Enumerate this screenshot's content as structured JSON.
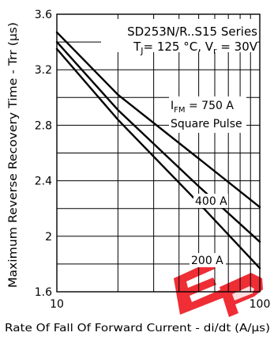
{
  "chart_data": {
    "type": "line",
    "title": "SD253N/R..S15 Series",
    "subtitle": {
      "tj_prefix": "T",
      "tj_sub": "J",
      "tj_value": "= 125 °C, V",
      "vr_sub": "r",
      "vr_value": " = 30V"
    },
    "xlabel": "Rate Of Fall Of Forward Current - di/dt (A/µs)",
    "ylabel": "Maximum Reverse Recovery Time - Trr (µs)",
    "x_scale": "log",
    "xlim": [
      10,
      100
    ],
    "ylim": [
      1.6,
      3.6
    ],
    "x_ticks": [
      "10",
      "100"
    ],
    "y_ticks": [
      "1.6",
      "2",
      "2.4",
      "2.8",
      "3.2",
      "3.6"
    ],
    "grid": true,
    "annotations": {
      "ifm_prefix": "I",
      "ifm_sub": "FM",
      "ifm_value": " = 750 A",
      "pulse": "Square Pulse",
      "label_400": "400 A",
      "label_200": "200 A"
    },
    "series": [
      {
        "x": [
          10,
          20,
          50,
          100
        ],
        "y": [
          3.47,
          3.02,
          2.56,
          2.21
        ]
      },
      {
        "x": [
          10,
          20,
          50,
          100
        ],
        "y": [
          3.4,
          2.91,
          2.36,
          1.96
        ]
      },
      {
        "x": [
          10,
          20,
          50,
          100
        ],
        "y": [
          3.35,
          2.84,
          2.24,
          1.77
        ]
      }
    ]
  },
  "watermark": {
    "text": "EP",
    "color": "#ee1c24"
  }
}
